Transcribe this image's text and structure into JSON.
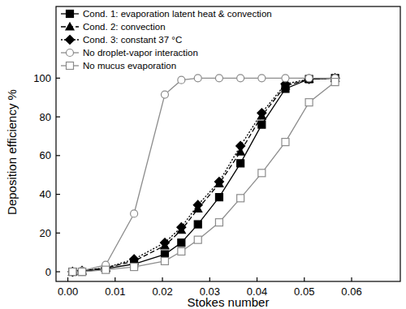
{
  "chart_data": {
    "type": "line",
    "x_label": "Stokes number",
    "y_label": "Deposition efficiency %",
    "x": [
      0.001,
      0.003,
      0.008,
      0.014,
      0.0205,
      0.024,
      0.0275,
      0.032,
      0.0365,
      0.041,
      0.046,
      0.051,
      0.0565
    ],
    "series": [
      {
        "name": "Cond. 1: evaporation latent heat & convection",
        "color": "#000000",
        "marker": "square",
        "line_style": "solid",
        "values": [
          0,
          0,
          1.5,
          4,
          9,
          15,
          24.5,
          38.5,
          56,
          76,
          94.5,
          99.5,
          100
        ]
      },
      {
        "name": "Cond. 2: convection",
        "color": "#000000",
        "marker": "triangle",
        "line_style": "dashed",
        "values": [
          0,
          0.5,
          2,
          5.5,
          13.5,
          21.5,
          32.5,
          45.5,
          62,
          80.5,
          96,
          99.5,
          100
        ]
      },
      {
        "name": "Cond. 3: constant 37 °C",
        "color": "#000000",
        "marker": "diamond",
        "line_style": "dotted",
        "values": [
          0,
          0.5,
          2,
          6.5,
          15,
          23,
          34.5,
          46.5,
          65,
          82,
          97,
          99.5,
          100
        ]
      },
      {
        "name": "No droplet-vapor interaction",
        "color": "#8c8c8c",
        "marker": "circle-open",
        "line_style": "solid",
        "values": [
          0,
          0.5,
          3.5,
          30,
          91.5,
          99,
          100,
          100,
          100,
          100,
          100,
          100,
          100
        ]
      },
      {
        "name": "No mucus evaporation",
        "color": "#8c8c8c",
        "marker": "square-open",
        "line_style": "solid",
        "values": [
          0,
          0,
          1,
          2.5,
          5.5,
          10.5,
          16.5,
          25.5,
          38,
          51,
          67,
          87.5,
          98
        ]
      }
    ],
    "xlim": [
      -0.0025,
      0.0703
    ],
    "ylim": [
      -5,
      137
    ],
    "xticks": [
      {
        "value": 0,
        "label": "0.00"
      },
      {
        "value": 0.01,
        "label": "0.01"
      },
      {
        "value": 0.02,
        "label": "0.02"
      },
      {
        "value": 0.03,
        "label": "0.03"
      },
      {
        "value": 0.04,
        "label": "0.04"
      },
      {
        "value": 0.05,
        "label": "0.05"
      },
      {
        "value": 0.06,
        "label": "0.06"
      }
    ],
    "yticks": [
      0,
      20,
      40,
      60,
      80,
      100
    ],
    "grid": false,
    "legend": "upper-left"
  }
}
